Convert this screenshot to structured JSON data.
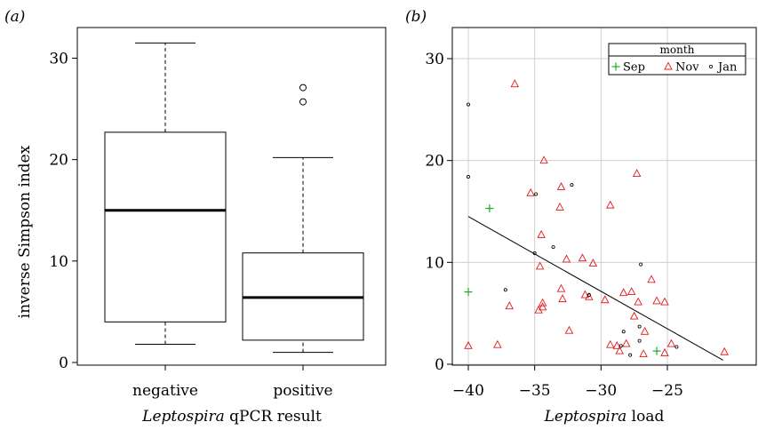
{
  "chart_data": [
    {
      "type": "box",
      "panel_label": "(a)",
      "title": "",
      "xlabel_italic": "Leptospira",
      "xlabel_rest": " qPCR result",
      "ylabel": "inverse Simpson index",
      "ylim": [
        0,
        33
      ],
      "yticks": [
        0,
        10,
        20,
        30
      ],
      "grid": false,
      "categories": [
        "negative",
        "positive"
      ],
      "boxes": [
        {
          "category": "negative",
          "min": 1.8,
          "q1": 4.0,
          "median": 15.0,
          "q3": 22.7,
          "max": 31.5,
          "outliers": []
        },
        {
          "category": "positive",
          "min": 1.0,
          "q1": 2.2,
          "median": 6.4,
          "q3": 10.8,
          "max": 20.2,
          "outliers": [
            25.7,
            27.1
          ]
        }
      ]
    },
    {
      "type": "scatter",
      "panel_label": "(b)",
      "title": "",
      "xlabel_italic": "Leptospira",
      "xlabel_rest": " load",
      "ylabel": "",
      "xlim": [
        -41,
        -20.5
      ],
      "ylim": [
        0,
        31
      ],
      "xticks": [
        -40,
        -35,
        -30,
        -25
      ],
      "yticks": [
        0,
        10,
        20,
        30
      ],
      "grid": true,
      "legend": {
        "title": "month",
        "placement": "top-right"
      },
      "series": [
        {
          "name": "Sep",
          "marker": "plus",
          "color": "#22aa22",
          "points": [
            [
              -38.4,
              15.3
            ],
            [
              -40.0,
              7.1
            ],
            [
              -25.8,
              1.3
            ]
          ]
        },
        {
          "name": "Nov",
          "marker": "triangle",
          "color": "#e31a1c",
          "points": [
            [
              -36.5,
              27.5
            ],
            [
              -35.3,
              16.8
            ],
            [
              -34.3,
              20.0
            ],
            [
              -33.0,
              17.4
            ],
            [
              -33.1,
              15.4
            ],
            [
              -34.5,
              12.7
            ],
            [
              -32.6,
              10.3
            ],
            [
              -31.4,
              10.4
            ],
            [
              -30.6,
              9.9
            ],
            [
              -34.6,
              9.6
            ],
            [
              -33.0,
              7.4
            ],
            [
              -30.9,
              6.6
            ],
            [
              -29.7,
              6.3
            ],
            [
              -31.2,
              6.8
            ],
            [
              -32.9,
              6.4
            ],
            [
              -34.4,
              6.0
            ],
            [
              -34.7,
              5.3
            ],
            [
              -34.4,
              5.6
            ],
            [
              -36.9,
              5.7
            ],
            [
              -32.4,
              3.3
            ],
            [
              -29.3,
              15.6
            ],
            [
              -27.3,
              18.7
            ],
            [
              -28.3,
              7.0
            ],
            [
              -27.7,
              7.1
            ],
            [
              -26.2,
              8.3
            ],
            [
              -27.2,
              6.1
            ],
            [
              -27.5,
              4.7
            ],
            [
              -26.7,
              3.2
            ],
            [
              -25.2,
              6.1
            ],
            [
              -25.8,
              6.2
            ],
            [
              -28.8,
              1.8
            ],
            [
              -28.6,
              1.3
            ],
            [
              -28.1,
              2.0
            ],
            [
              -26.8,
              1.0
            ],
            [
              -25.2,
              1.1
            ],
            [
              -24.7,
              2.0
            ],
            [
              -20.7,
              1.2
            ],
            [
              -40.0,
              1.8
            ],
            [
              -37.8,
              1.9
            ],
            [
              -29.3,
              1.9
            ]
          ]
        },
        {
          "name": "Jan",
          "marker": "circle",
          "color": "#000000",
          "points": [
            [
              -40.0,
              25.5
            ],
            [
              -40.0,
              18.4
            ],
            [
              -34.9,
              16.7
            ],
            [
              -32.2,
              17.6
            ],
            [
              -33.6,
              11.5
            ],
            [
              -35.0,
              10.9
            ],
            [
              -37.2,
              7.3
            ],
            [
              -30.9,
              6.8
            ],
            [
              -27.0,
              9.8
            ],
            [
              -28.3,
              3.2
            ],
            [
              -27.1,
              3.7
            ],
            [
              -27.1,
              2.3
            ],
            [
              -28.5,
              1.8
            ],
            [
              -27.8,
              0.9
            ],
            [
              -24.3,
              1.7
            ]
          ]
        }
      ],
      "regression": {
        "x": [
          -40.0,
          -20.8
        ],
        "y": [
          14.5,
          0.4
        ]
      }
    }
  ]
}
